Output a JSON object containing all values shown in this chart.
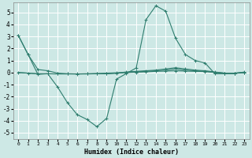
{
  "xlabel": "Humidex (Indice chaleur)",
  "xlim": [
    -0.5,
    23.5
  ],
  "ylim": [
    -5.5,
    5.8
  ],
  "yticks": [
    -5,
    -4,
    -3,
    -2,
    -1,
    0,
    1,
    2,
    3,
    4,
    5
  ],
  "xticks": [
    0,
    1,
    2,
    3,
    4,
    5,
    6,
    7,
    8,
    9,
    10,
    11,
    12,
    13,
    14,
    15,
    16,
    17,
    18,
    19,
    20,
    21,
    22,
    23
  ],
  "background_color": "#cde8e5",
  "grid_color": "#ffffff",
  "line_color": "#2e7d6e",
  "line1": [
    3.1,
    1.5,
    0.25,
    0.15,
    -0.05,
    -0.1,
    -0.12,
    -0.1,
    -0.08,
    -0.05,
    -0.02,
    0.0,
    0.02,
    0.05,
    0.1,
    0.12,
    0.15,
    0.12,
    0.1,
    0.08,
    0.0,
    -0.05,
    -0.05,
    0.0
  ],
  "line2": [
    3.1,
    1.5,
    -0.15,
    -0.1,
    -1.2,
    -2.5,
    -3.5,
    -3.9,
    -4.5,
    -3.8,
    -0.55,
    -0.08,
    0.38,
    4.4,
    5.55,
    5.1,
    2.85,
    1.5,
    1.0,
    0.8,
    -0.1,
    -0.1,
    -0.1,
    0.05
  ],
  "line3": [
    0.0,
    -0.05,
    -0.1,
    -0.1,
    -0.1,
    -0.1,
    -0.1,
    -0.1,
    -0.1,
    -0.1,
    -0.05,
    0.05,
    0.1,
    0.15,
    0.2,
    0.3,
    0.4,
    0.3,
    0.2,
    0.15,
    0.05,
    -0.05,
    -0.05,
    0.0
  ],
  "line4": [
    0.0,
    -0.05,
    -0.1,
    -0.1,
    -0.12,
    -0.12,
    -0.12,
    -0.12,
    -0.1,
    -0.1,
    -0.05,
    0.0,
    0.05,
    0.1,
    0.15,
    0.2,
    0.3,
    0.2,
    0.15,
    0.1,
    0.0,
    -0.05,
    -0.05,
    0.0
  ]
}
